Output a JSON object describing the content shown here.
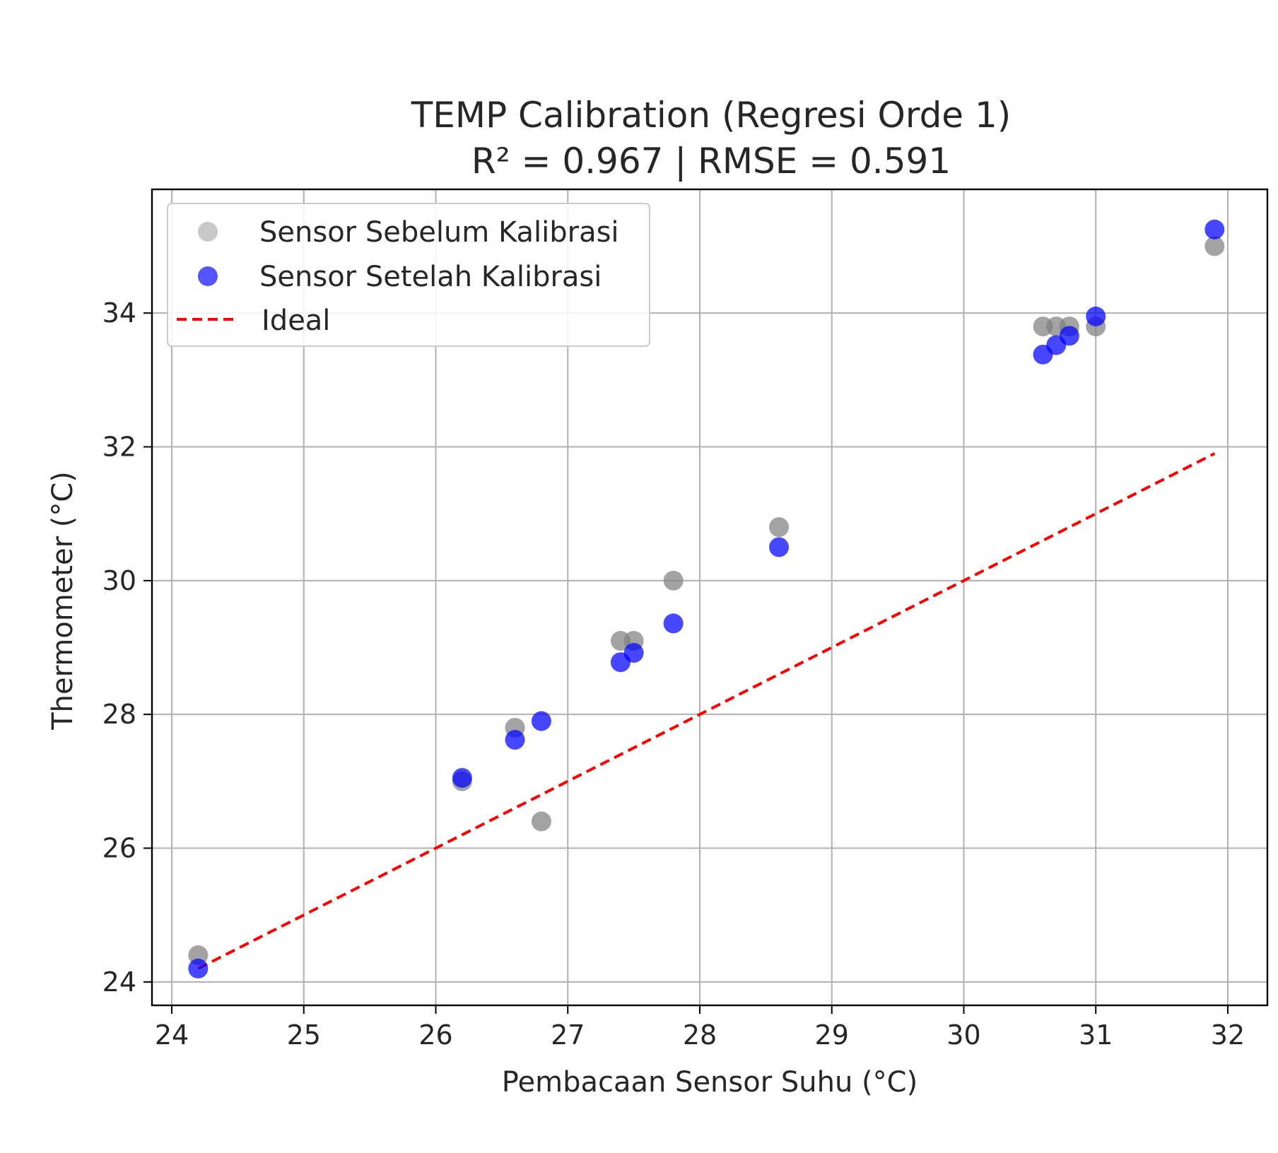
{
  "chart_data": {
    "type": "scatter",
    "title": "TEMP Calibration (Regresi Orde 1)",
    "subtitle": "R² = 0.967 | RMSE = 0.591",
    "xlabel": "Pembacaan Sensor Suhu (°C)",
    "ylabel": "Thermometer (°C)",
    "xlim": [
      23.85,
      32.3
    ],
    "ylim": [
      23.65,
      35.85
    ],
    "xticks": [
      24,
      25,
      26,
      27,
      28,
      29,
      30,
      31,
      32
    ],
    "yticks": [
      24,
      26,
      28,
      30,
      32,
      34
    ],
    "grid": true,
    "legend_position": "upper-left",
    "series": [
      {
        "name": "Sensor Sebelum Kalibrasi",
        "kind": "scatter",
        "color": "#808080",
        "legend_color": "#c8c8c8",
        "points": [
          [
            24.2,
            24.4
          ],
          [
            26.2,
            27.0
          ],
          [
            26.6,
            27.8
          ],
          [
            26.8,
            26.4
          ],
          [
            27.4,
            29.1
          ],
          [
            27.5,
            29.1
          ],
          [
            27.8,
            30.0
          ],
          [
            28.6,
            30.8
          ],
          [
            30.6,
            33.8
          ],
          [
            30.7,
            33.8
          ],
          [
            30.8,
            33.8
          ],
          [
            31.0,
            33.8
          ],
          [
            31.9,
            35.0
          ]
        ]
      },
      {
        "name": "Sensor Setelah Kalibrasi",
        "kind": "scatter",
        "color": "#0000ff",
        "legend_color": "#5555ff",
        "points": [
          [
            24.2,
            24.2
          ],
          [
            26.2,
            27.05
          ],
          [
            26.6,
            27.62
          ],
          [
            26.8,
            27.9
          ],
          [
            27.4,
            28.78
          ],
          [
            27.5,
            28.92
          ],
          [
            27.8,
            29.36
          ],
          [
            28.6,
            30.5
          ],
          [
            30.6,
            33.38
          ],
          [
            30.7,
            33.52
          ],
          [
            30.8,
            33.66
          ],
          [
            31.0,
            33.95
          ],
          [
            31.9,
            35.25
          ]
        ]
      },
      {
        "name": "Ideal",
        "kind": "line",
        "style": "dashed",
        "color": "#ff0000",
        "points": [
          [
            24.2,
            24.2
          ],
          [
            31.9,
            31.9
          ]
        ]
      }
    ]
  }
}
